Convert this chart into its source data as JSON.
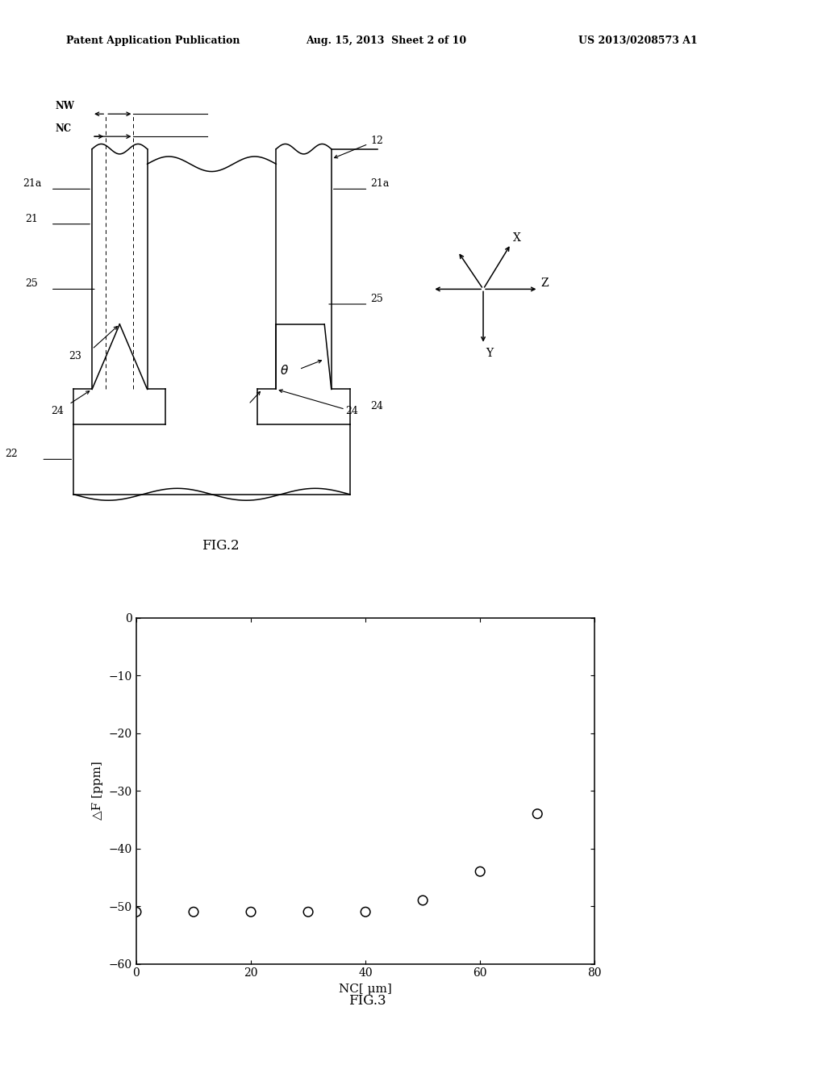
{
  "header_left": "Patent Application Publication",
  "header_mid": "Aug. 15, 2013  Sheet 2 of 10",
  "header_right": "US 2013/0208573 A1",
  "fig2_caption": "FIG.2",
  "fig3_caption": "FIG.3",
  "scatter_x": [
    0,
    10,
    20,
    30,
    40,
    50,
    60,
    70
  ],
  "scatter_y": [
    -51,
    -51,
    -51,
    -51,
    -51,
    -49,
    -44,
    -34
  ],
  "xlim": [
    0,
    80
  ],
  "ylim": [
    -60,
    0
  ],
  "xticks": [
    0,
    20,
    40,
    60,
    80
  ],
  "yticks": [
    0,
    -10,
    -20,
    -30,
    -40,
    -50,
    -60
  ],
  "xlabel": "NC[ μm]",
  "ylabel": "△F [ppm]",
  "bg_color": "#ffffff",
  "fg_color": "#000000"
}
